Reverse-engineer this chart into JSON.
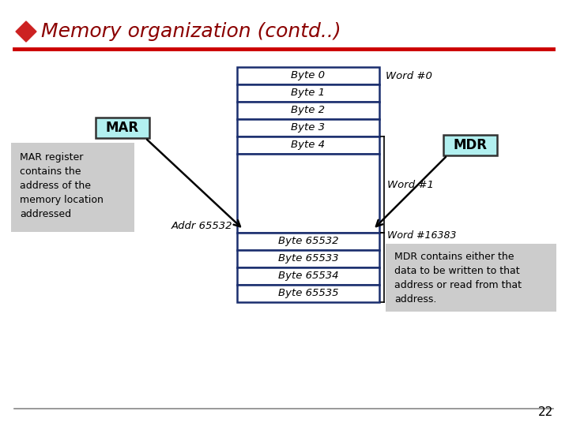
{
  "title": "Memory organization (contd..)",
  "background_color": "#ffffff",
  "title_color": "#8B0000",
  "title_fontsize": 18,
  "diamond_color": "#cc2222",
  "red_line_color": "#cc0000",
  "table_border_color": "#1a2e6e",
  "table_fill_top": "#ffffff",
  "cyan_box_color": "#b2f0f0",
  "gray_box_color": "#cccccc",
  "byte_rows_top": [
    "Byte 0",
    "Byte 1",
    "Byte 2",
    "Byte 3",
    "Byte 4"
  ],
  "byte_rows_bottom": [
    "Byte 65532",
    "Byte 65533",
    "Byte 65534",
    "Byte 65535"
  ],
  "word_label_0": "Word #0",
  "word_label_1": "Word #1",
  "word_label_bottom": "Word #16383",
  "addr_label": "Addr 65532",
  "mar_label": "MAR",
  "mdr_label": "MDR",
  "mar_desc": "MAR register\ncontains the\naddress of the\nmemory location\naddressed",
  "mdr_desc": "MDR contains either the\ndata to be written to that\naddress or read from that\naddress.",
  "page_number": "22"
}
